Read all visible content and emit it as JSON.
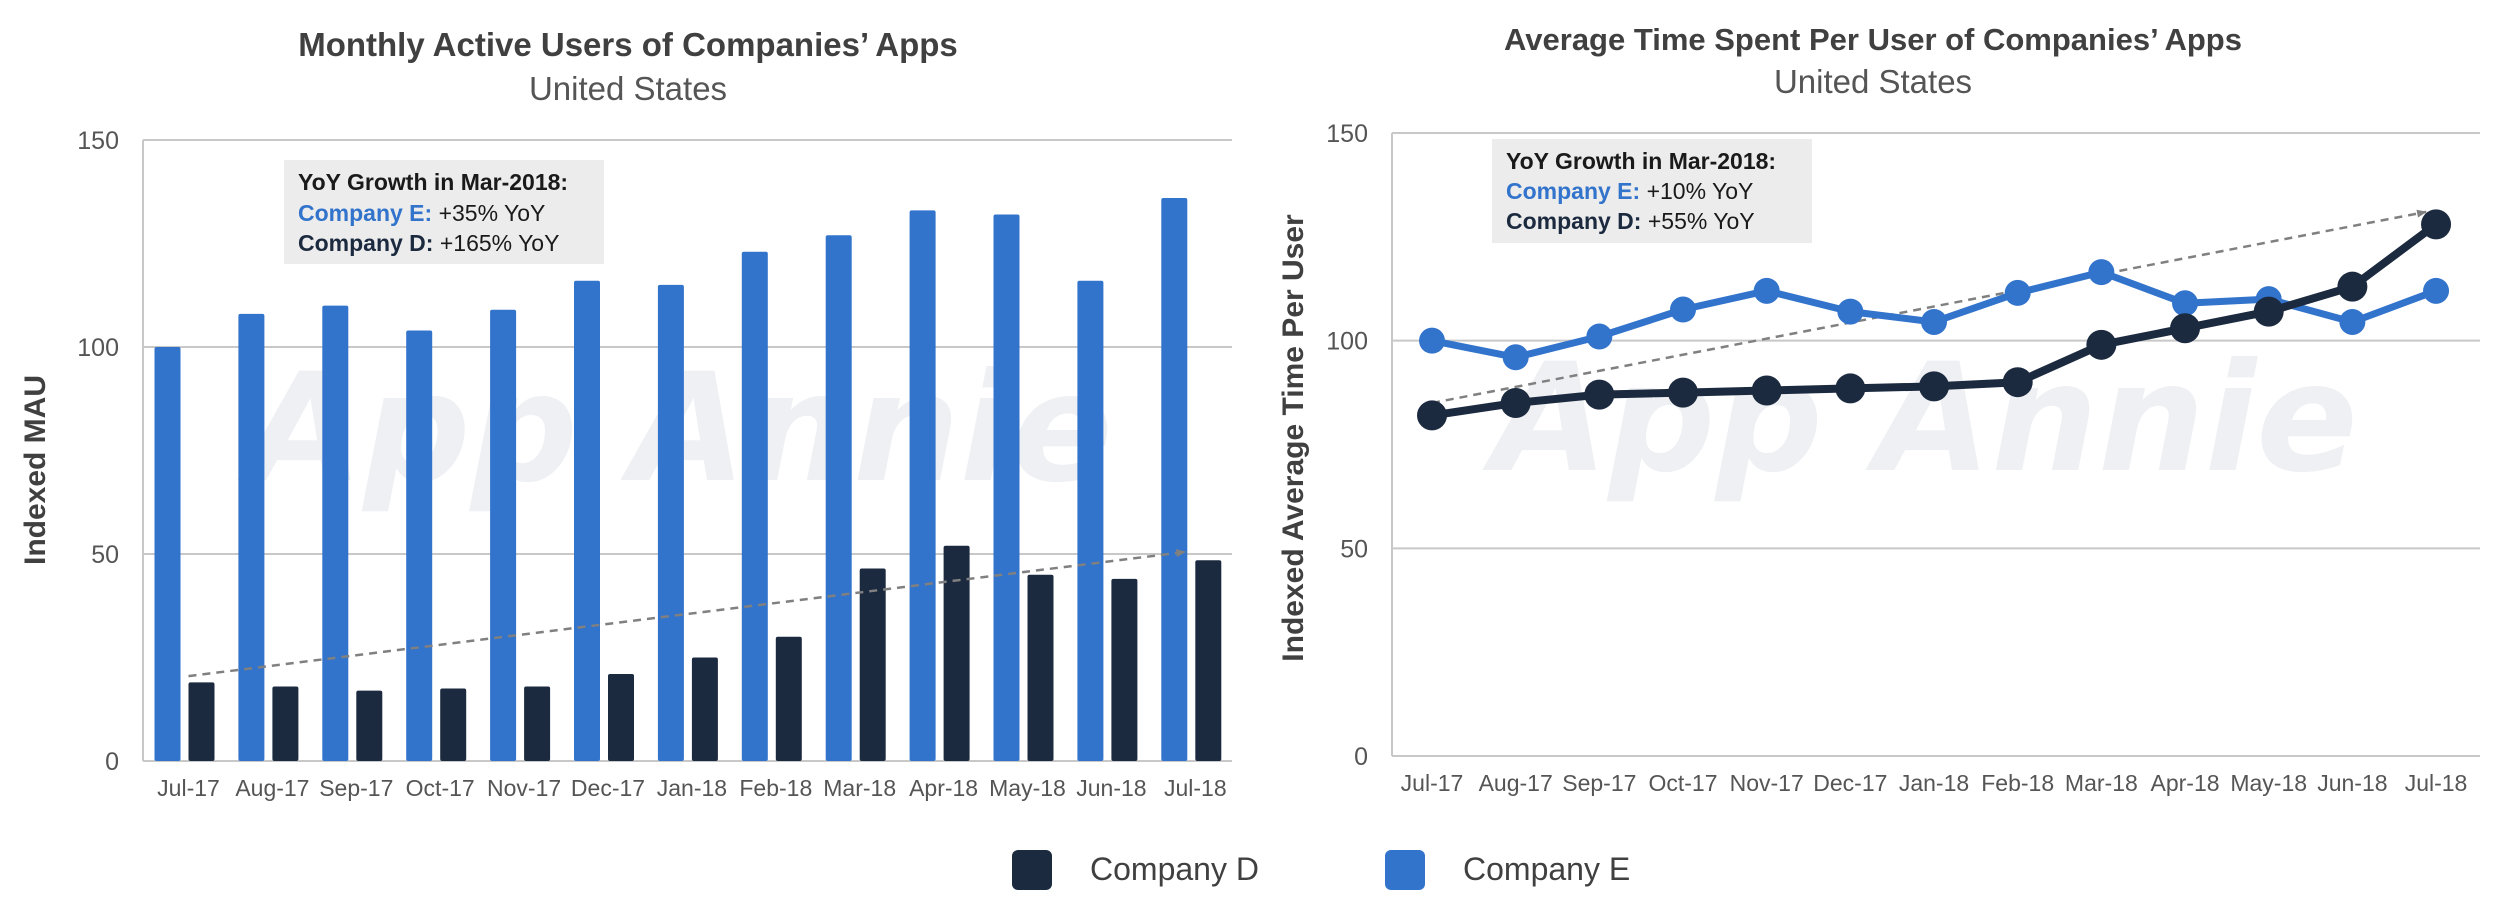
{
  "colors": {
    "company_d": "#1c2a3f",
    "company_e": "#3273cc",
    "grid": "#c8c8c8",
    "trend": "#808080",
    "annotation_bg": "#ececec"
  },
  "watermark": "App Annie",
  "legend": {
    "items": [
      {
        "label": "Company D",
        "color": "#1c2a3f"
      },
      {
        "label": "Company E",
        "color": "#3273cc"
      }
    ]
  },
  "chart_data": [
    {
      "type": "bar",
      "title": "Monthly Active Users of Companies’ Apps",
      "subtitle": "United States",
      "ylabel": "Indexed MAU",
      "xlabel": "",
      "ylim": [
        0,
        150
      ],
      "yticks": [
        "0",
        "50",
        "100",
        "150"
      ],
      "grid": true,
      "categories": [
        "Jul-17",
        "Aug-17",
        "Sep-17",
        "Oct-17",
        "Nov-17",
        "Dec-17",
        "Jan-18",
        "Feb-18",
        "Mar-18",
        "Apr-18",
        "May-18",
        "Jun-18",
        "Jul-18"
      ],
      "series": [
        {
          "name": "Company E",
          "values": [
            100,
            108,
            110,
            104,
            109,
            116,
            115,
            123,
            127,
            133,
            132,
            116,
            136
          ]
        },
        {
          "name": "Company D",
          "values": [
            19,
            18,
            17,
            17.5,
            18,
            21,
            25,
            30,
            46.5,
            52,
            45,
            44,
            48.5
          ]
        }
      ],
      "trend_line": {
        "from": [
          0,
          20.5
        ],
        "to": [
          12,
          50.5
        ]
      },
      "annotation": {
        "heading": "YoY Growth in Mar-2018:",
        "lines": [
          {
            "label": "Company E:",
            "value": "+35% YoY"
          },
          {
            "label": "Company D:",
            "value": "+165% YoY"
          }
        ]
      }
    },
    {
      "type": "line",
      "title": "Average Time Spent Per User of Companies’ Apps",
      "subtitle": "United States",
      "ylabel": "Indexed Average Time Per User",
      "xlabel": "",
      "ylim": [
        0,
        150
      ],
      "yticks": [
        "0",
        "50",
        "100",
        "150"
      ],
      "grid": true,
      "categories": [
        "Jul-17",
        "Aug-17",
        "Sep-17",
        "Oct-17",
        "Nov-17",
        "Dec-17",
        "Jan-18",
        "Feb-18",
        "Mar-18",
        "Apr-18",
        "May-18",
        "Jun-18",
        "Jul-18"
      ],
      "series": [
        {
          "name": "Company E",
          "values": [
            100,
            96,
            101,
            107.5,
            112,
            107,
            104.5,
            111.5,
            116.5,
            109,
            110,
            104.5,
            112
          ]
        },
        {
          "name": "Company D",
          "values": [
            82,
            85,
            87,
            87.5,
            88,
            88.5,
            89,
            90,
            99,
            103,
            107,
            113,
            128
          ]
        }
      ],
      "trend_line": {
        "from": [
          0,
          85
        ],
        "to": [
          12,
          131
        ]
      },
      "annotation": {
        "heading": "YoY Growth in Mar-2018:",
        "lines": [
          {
            "label": "Company E:",
            "value": "+10% YoY"
          },
          {
            "label": "Company D:",
            "value": "+55% YoY"
          }
        ]
      }
    }
  ]
}
